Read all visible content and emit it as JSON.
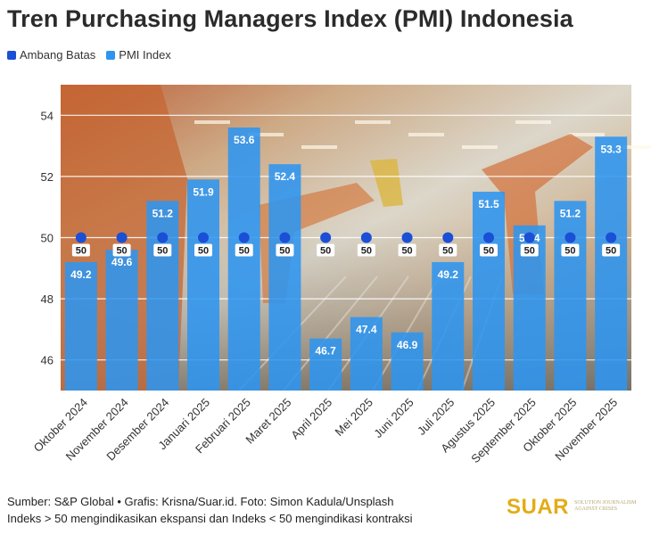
{
  "title": "Tren Purchasing Managers Index (PMI) Indonesia",
  "legend": [
    {
      "label": "Ambang Batas",
      "color": "#1a4fd6"
    },
    {
      "label": "PMI Index",
      "color": "#2d95f0"
    }
  ],
  "footer": {
    "line1": "Sumber: S&P Global • Grafis: Krisna/Suar.id. Foto: Simon Kadula/Unsplash",
    "line2": "Indeks > 50 mengindikasikan ekspansi dan Indeks < 50 mengindikasi kontraksi"
  },
  "logo": {
    "text": "SUAR",
    "tagline": "Solution Journalism Against Crises"
  },
  "chart_data": {
    "type": "bar",
    "title": "Tren Purchasing Managers Index (PMI) Indonesia",
    "xlabel": "",
    "ylabel": "",
    "ylim": [
      45,
      55
    ],
    "yticks": [
      46,
      48,
      50,
      52,
      54
    ],
    "grid": true,
    "legend_position": "top-left",
    "categories": [
      "Oktober 2024",
      "November 2024",
      "Desember 2024",
      "Januari 2025",
      "Februari 2025",
      "Maret 2025",
      "April 2025",
      "Mei 2025",
      "Juni 2025",
      "Juli 2025",
      "Agustus 2025",
      "September 2025",
      "Oktober 2025",
      "November 2025"
    ],
    "series": [
      {
        "name": "PMI Index",
        "type": "bar",
        "color": "#2d95f0",
        "values": [
          49.2,
          49.6,
          51.2,
          51.9,
          53.6,
          52.4,
          46.7,
          47.4,
          46.9,
          49.2,
          51.5,
          50.4,
          51.2,
          53.3
        ]
      },
      {
        "name": "Ambang Batas",
        "type": "point",
        "color": "#1a4fd6",
        "values": [
          50,
          50,
          50,
          50,
          50,
          50,
          50,
          50,
          50,
          50,
          50,
          50,
          50,
          50
        ]
      }
    ]
  }
}
